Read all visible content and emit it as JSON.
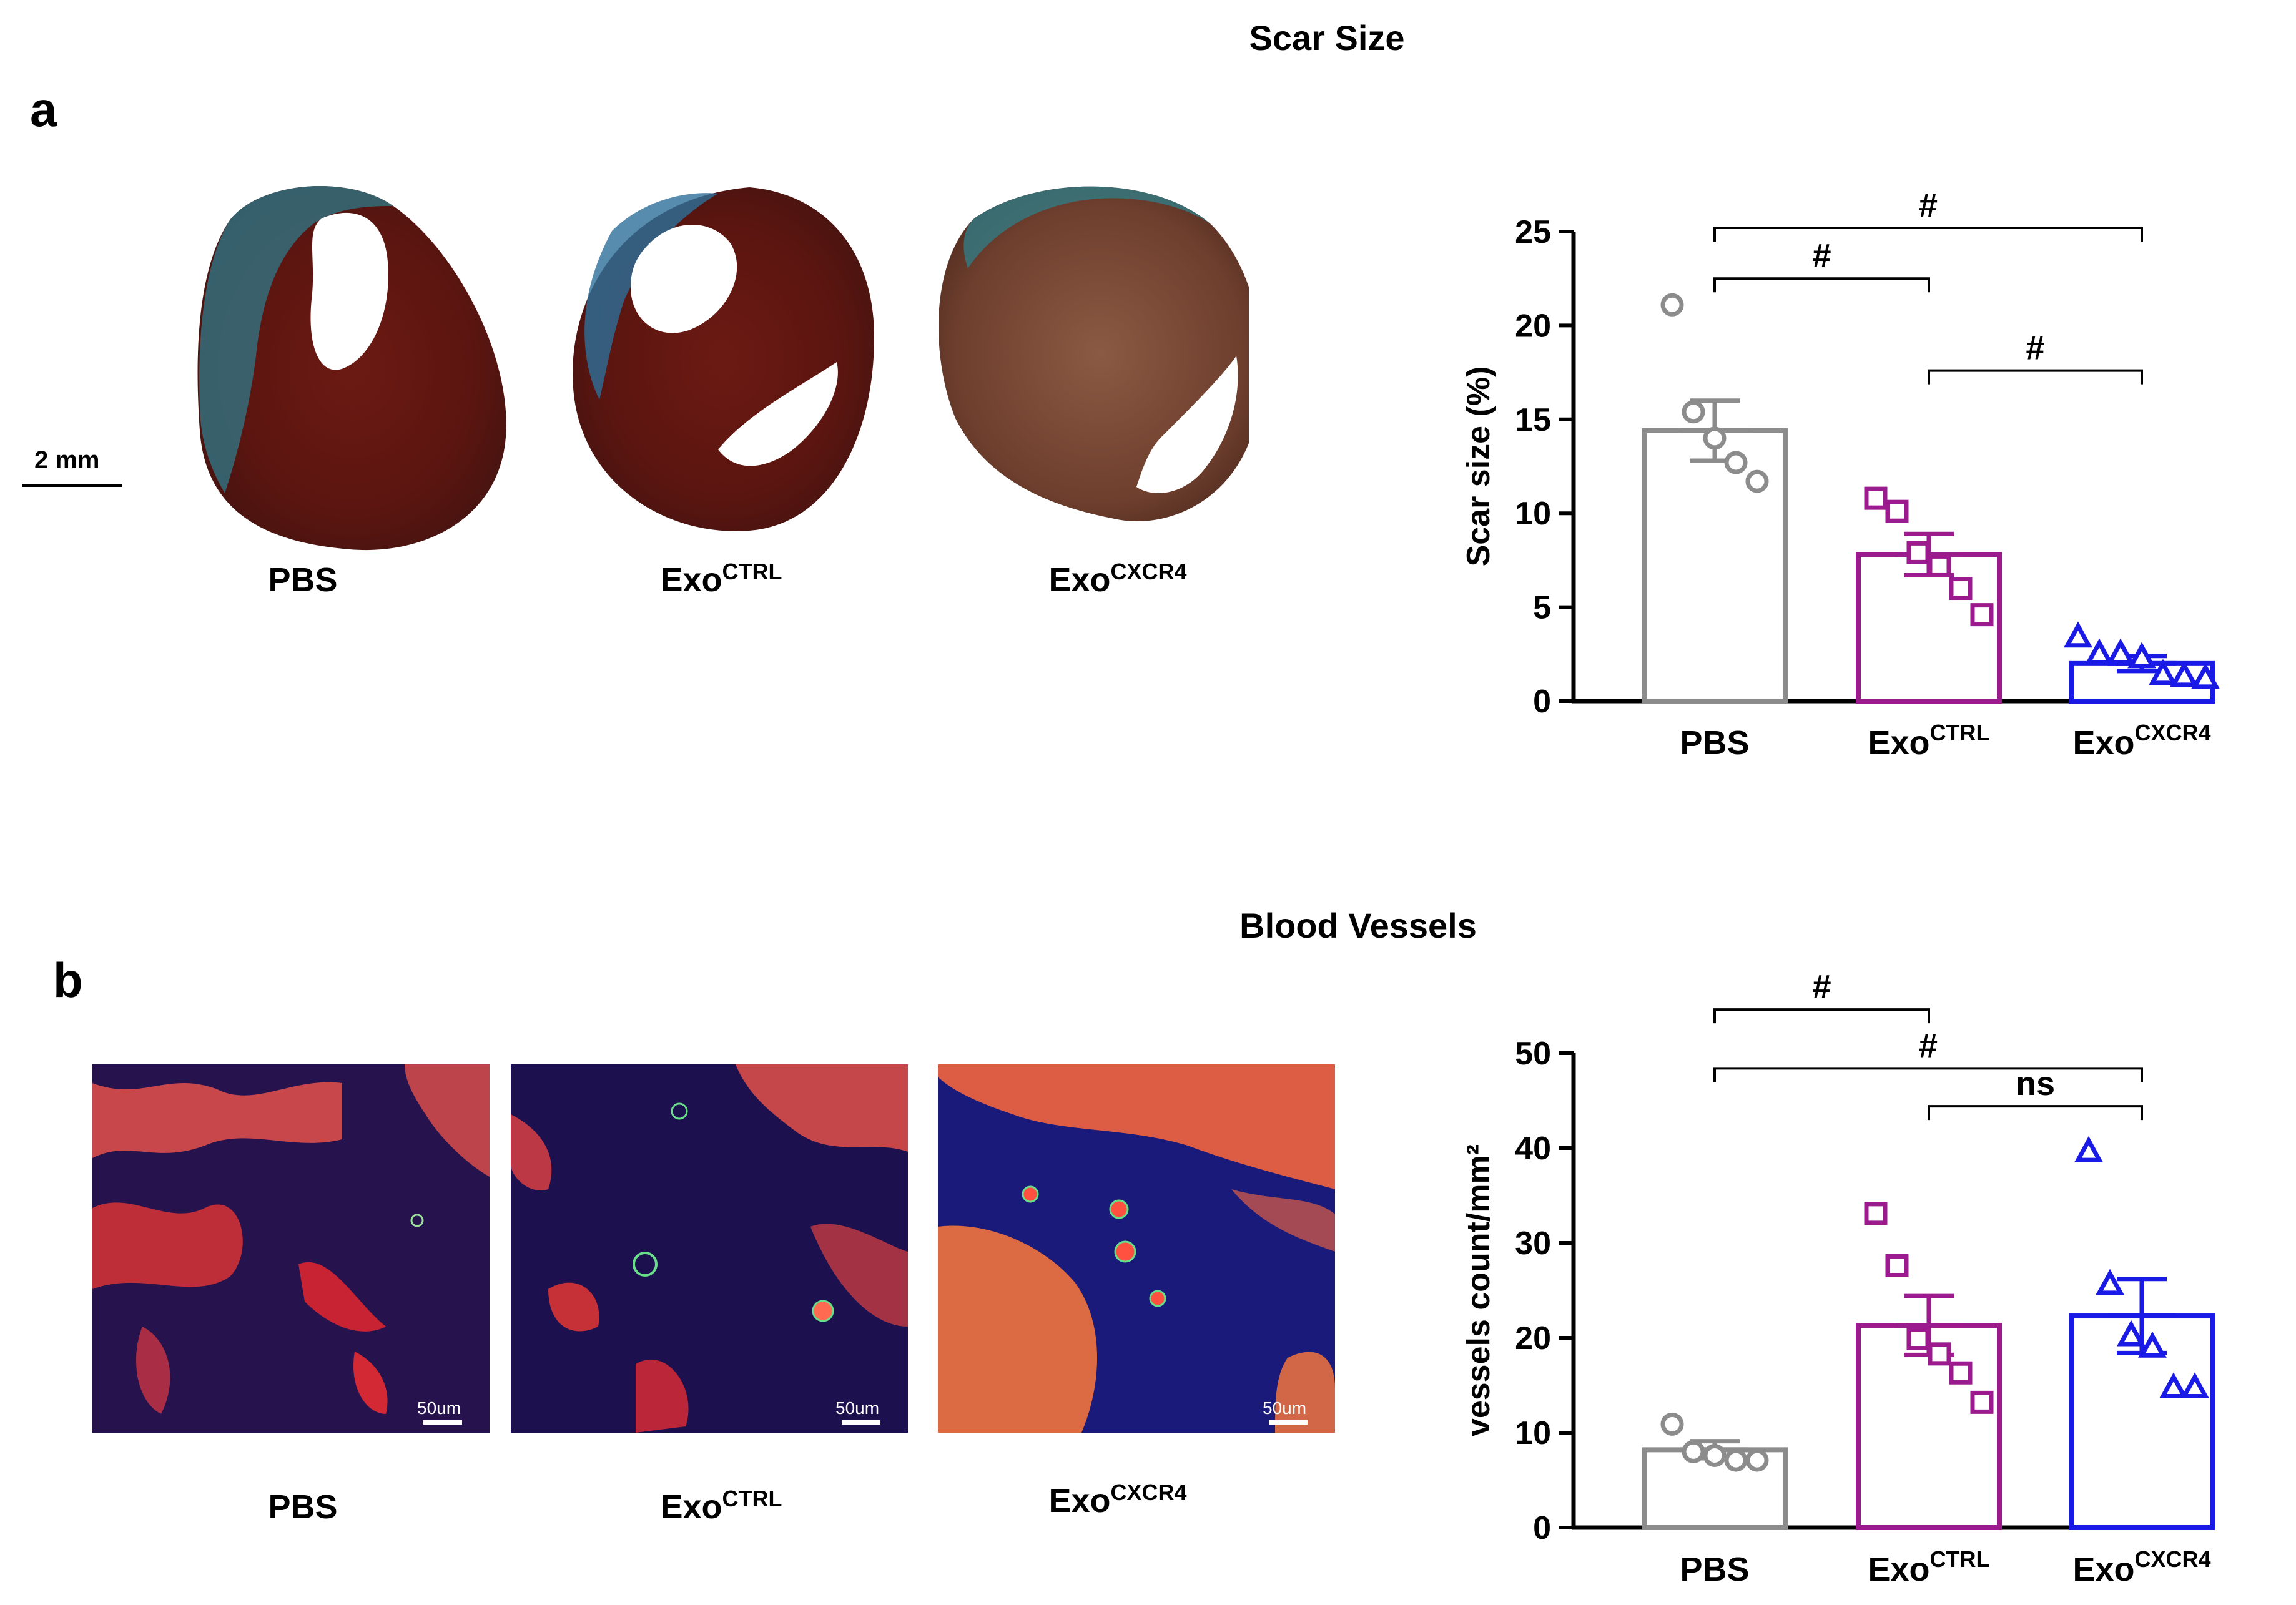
{
  "figure": {
    "panel_a": {
      "letter": "a",
      "title": "Scar Size",
      "scale_bar": "2 mm",
      "image_labels": [
        {
          "base": "PBS",
          "sup": ""
        },
        {
          "base": "Exo",
          "sup": "CTRL"
        },
        {
          "base": "Exo",
          "sup": "CXCR4"
        }
      ]
    },
    "panel_b": {
      "letter": "b",
      "title": "Blood Vessels",
      "image_labels": [
        {
          "base": "PBS",
          "sup": ""
        },
        {
          "base": "Exo",
          "sup": "CTRL"
        },
        {
          "base": "Exo",
          "sup": "CXCR4"
        }
      ],
      "scale_bars": [
        "50um",
        "50um",
        "50um"
      ]
    }
  },
  "chart_data": [
    {
      "type": "bar",
      "ylabel": "Scar size (%)",
      "ylim": [
        0,
        25
      ],
      "yticks": [
        0,
        5,
        10,
        15,
        20,
        25
      ],
      "categories": [
        {
          "base": "PBS",
          "sup": ""
        },
        {
          "base": "Exo",
          "sup": "CTRL"
        },
        {
          "base": "Exo",
          "sup": "CXCR4"
        }
      ],
      "values": [
        14.4,
        7.8,
        2.0
      ],
      "sem": [
        1.6,
        1.1,
        0.4
      ],
      "colors": [
        "#8c8c8c",
        "#9b1b8f",
        "#1a1ae6"
      ],
      "markers": [
        "circle",
        "square",
        "triangle"
      ],
      "points": [
        [
          21.1,
          15.4,
          14.0,
          12.7,
          11.7
        ],
        [
          10.8,
          10.1,
          7.9,
          7.2,
          6.0,
          4.6
        ],
        [
          3.4,
          2.5,
          2.5,
          2.3,
          1.4,
          1.3,
          1.2
        ]
      ],
      "significance": [
        {
          "from": 0,
          "to": 2,
          "y": 25.2,
          "label": "#"
        },
        {
          "from": 0,
          "to": 1,
          "y": 22.5,
          "label": "#"
        },
        {
          "from": 1,
          "to": 2,
          "y": 17.6,
          "label": "#"
        }
      ]
    },
    {
      "type": "bar",
      "ylabel": "vessels count/mm²",
      "ylim": [
        0,
        50
      ],
      "yticks": [
        0,
        10,
        20,
        30,
        40,
        50
      ],
      "categories": [
        {
          "base": "PBS",
          "sup": ""
        },
        {
          "base": "Exo",
          "sup": "CTRL"
        },
        {
          "base": "Exo",
          "sup": "CXCR4"
        }
      ],
      "values": [
        8.2,
        21.3,
        22.3
      ],
      "sem": [
        0.9,
        3.1,
        3.9
      ],
      "colors": [
        "#8c8c8c",
        "#9b1b8f",
        "#1a1ae6"
      ],
      "markers": [
        "circle",
        "square",
        "triangle"
      ],
      "points": [
        [
          10.9,
          8.0,
          7.6,
          7.1,
          7.1
        ],
        [
          33.1,
          27.6,
          19.9,
          18.3,
          16.3,
          13.2
        ],
        [
          39.6,
          25.6,
          20.2,
          19.0,
          14.7,
          14.7
        ]
      ],
      "significance": [
        {
          "from": 0,
          "to": 1,
          "y": 54.6,
          "label": "#"
        },
        {
          "from": 0,
          "to": 2,
          "y": 48.4,
          "label": "#"
        },
        {
          "from": 1,
          "to": 2,
          "y": 44.4,
          "label": "ns"
        }
      ]
    }
  ]
}
